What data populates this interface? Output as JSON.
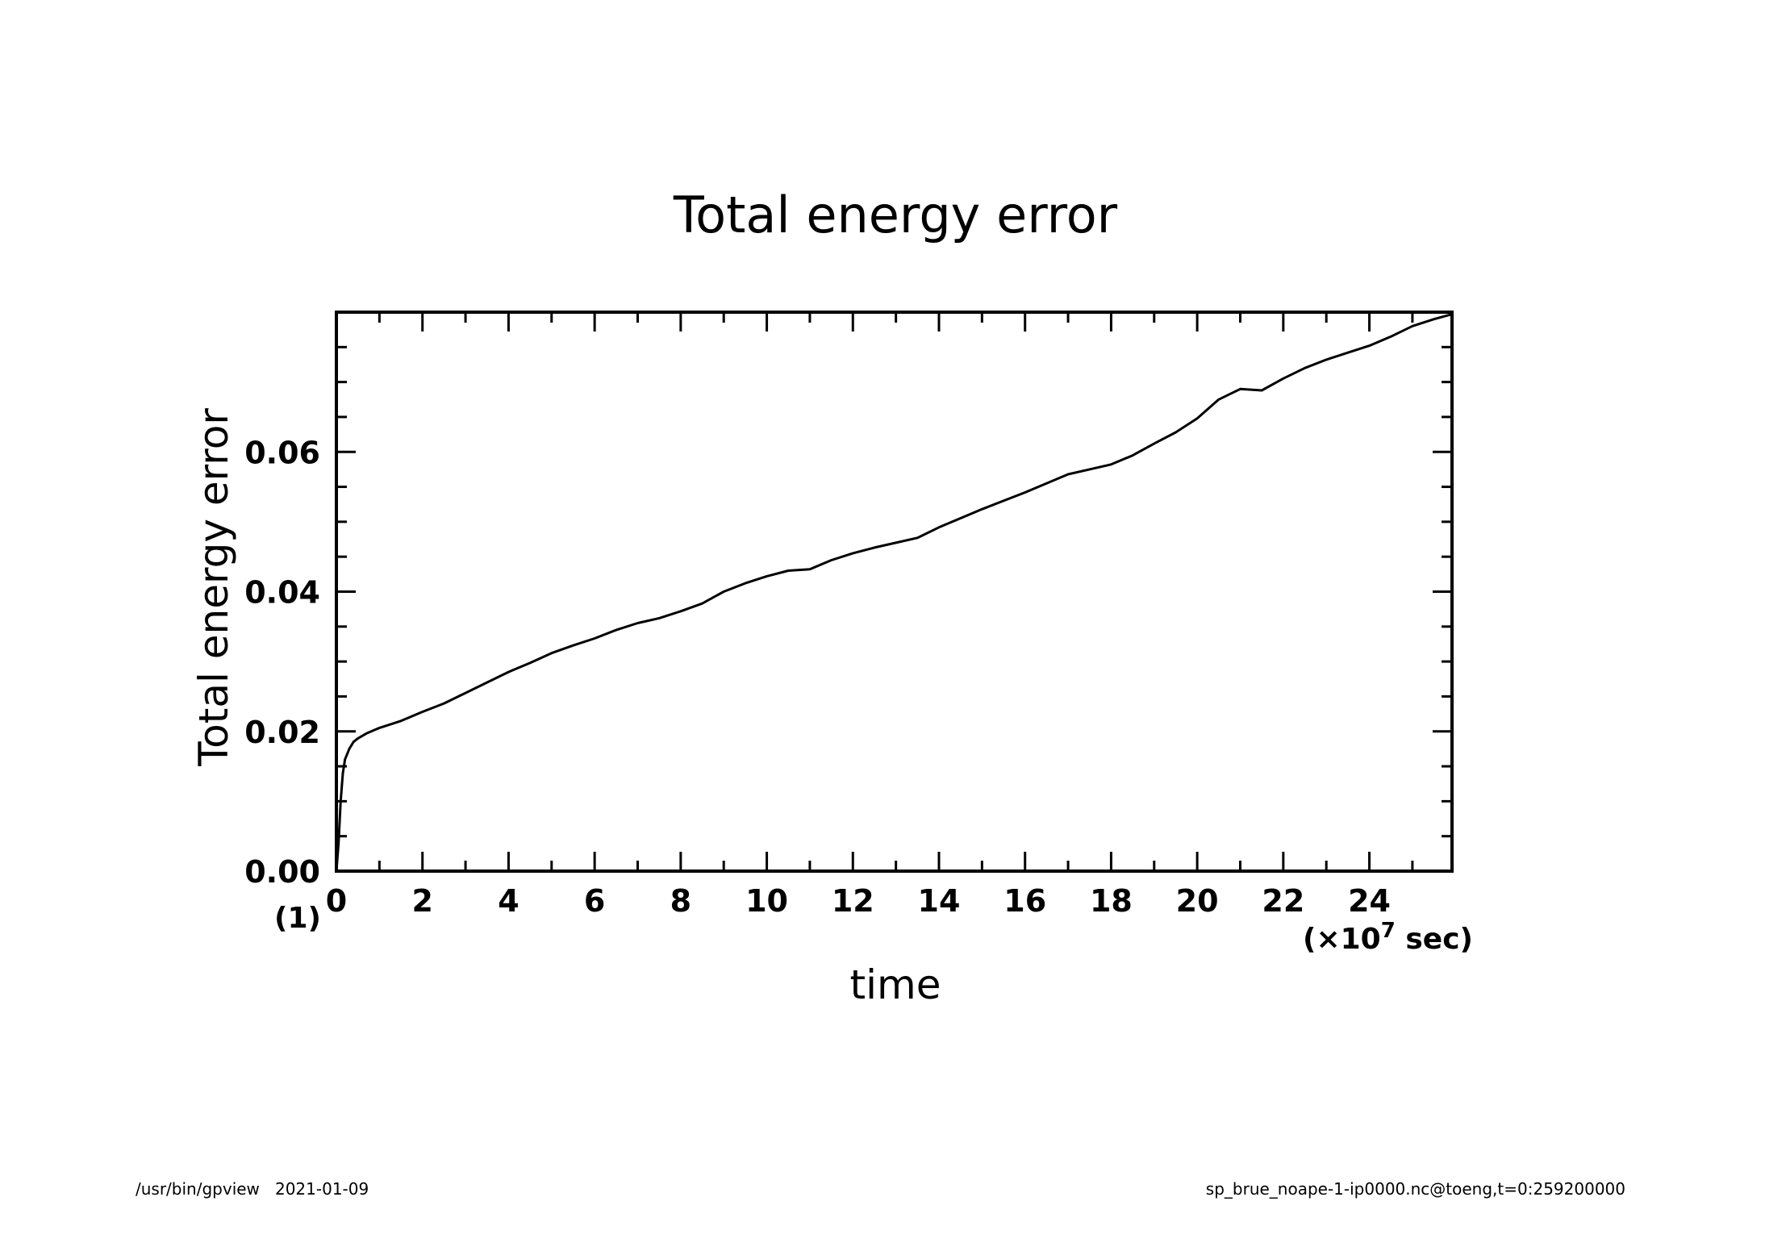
{
  "footer": {
    "left": "/usr/bin/gpview   2021-01-09",
    "right": "sp_brue_noape-1-ip0000.nc@toeng,t=0:259200000"
  },
  "chart_data": {
    "type": "line",
    "title": "Total energy error",
    "xlabel": "time",
    "ylabel": "Total energy error",
    "x_unit_label": "(×10",
    "x_unit_exp": "7",
    "x_unit_tail": " sec)",
    "y_unit_label": "(1)",
    "xlim": [
      0,
      25.92
    ],
    "ylim": [
      0,
      0.08
    ],
    "x_ticks": [
      0,
      2,
      4,
      6,
      8,
      10,
      12,
      14,
      16,
      18,
      20,
      22,
      24
    ],
    "x_tick_labels": [
      "0",
      "2",
      "4",
      "6",
      "8",
      "10",
      "12",
      "14",
      "16",
      "18",
      "20",
      "22",
      "24"
    ],
    "y_ticks": [
      0,
      0.02,
      0.04,
      0.06
    ],
    "y_tick_labels": [
      "0.00",
      "0.02",
      "0.04",
      "0.06"
    ],
    "grid": false,
    "line_color": "#000000",
    "series": [
      {
        "x": [
          0,
          0.05,
          0.1,
          0.15,
          0.2,
          0.3,
          0.4,
          0.5,
          0.7,
          1,
          1.5,
          2,
          2.5,
          3,
          3.5,
          4,
          4.5,
          5,
          5.5,
          6,
          6.5,
          7,
          7.5,
          8,
          8.5,
          9,
          9.5,
          10,
          10.5,
          11,
          11.5,
          12,
          12.5,
          13,
          13.5,
          14,
          14.5,
          15,
          15.5,
          16,
          16.5,
          17,
          17.5,
          18,
          18.5,
          19,
          19.5,
          20,
          20.5,
          21,
          21.5,
          22,
          22.5,
          23,
          23.5,
          24,
          24.5,
          25,
          25.5,
          25.92
        ],
        "y": [
          0,
          0.004,
          0.01,
          0.014,
          0.016,
          0.0175,
          0.0185,
          0.019,
          0.0197,
          0.0205,
          0.0215,
          0.0228,
          0.024,
          0.0255,
          0.027,
          0.0285,
          0.0298,
          0.0312,
          0.0323,
          0.0333,
          0.0345,
          0.0355,
          0.0362,
          0.0372,
          0.0383,
          0.04,
          0.0412,
          0.0422,
          0.043,
          0.0432,
          0.0445,
          0.0455,
          0.0463,
          0.047,
          0.0477,
          0.0492,
          0.0505,
          0.0518,
          0.053,
          0.0542,
          0.0555,
          0.0568,
          0.0575,
          0.0582,
          0.0595,
          0.0612,
          0.0628,
          0.0648,
          0.0675,
          0.069,
          0.0688,
          0.0705,
          0.072,
          0.0732,
          0.0742,
          0.0752,
          0.0765,
          0.078,
          0.079,
          0.0797
        ]
      }
    ]
  }
}
